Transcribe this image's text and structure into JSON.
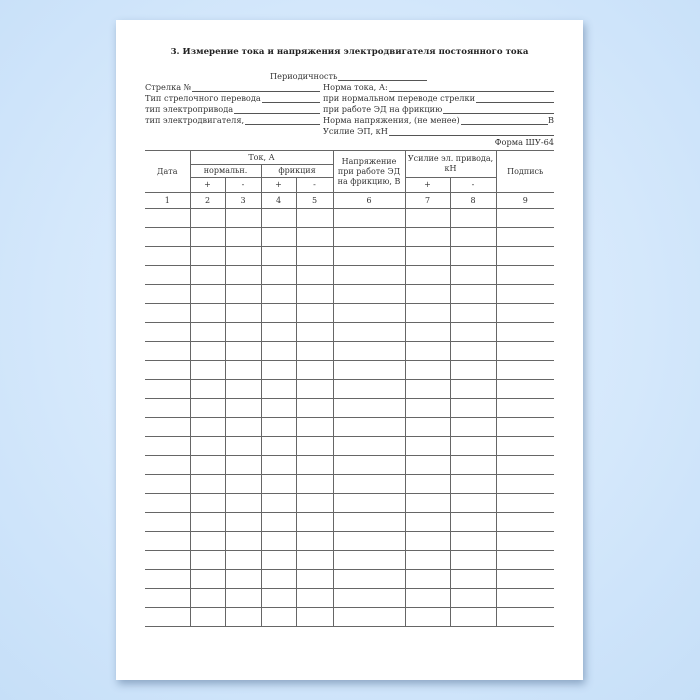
{
  "title": "3. Измерение тока и напряжения электродвигателя постоянного тока",
  "periodicity": "Периодичность",
  "fields_left": [
    "Стрелка №",
    "Тип стрелочного перевода",
    "тип электропривода",
    "тип электродвигателя,"
  ],
  "fields_right": [
    "Норма тока, А:",
    "при нормальном переводе стрелки",
    "при работе ЭД на фрикцию",
    "Норма напряжения, (не менее)",
    "Усилие ЭП, кН"
  ],
  "unit_v": "В",
  "form_id": "Форма ШУ-64",
  "table": {
    "date": "Дата",
    "current": "Ток, А",
    "normal": "нормальн.",
    "friction": "фрикция",
    "voltage": "Напряжение при работе ЭД на фрикцию, В",
    "force": "Усилие эл. привода, кН",
    "signature": "Подпись",
    "plus": "+",
    "minus": "-",
    "numbers": [
      "1",
      "2",
      "3",
      "4",
      "5",
      "6",
      "7",
      "8",
      "9"
    ],
    "empty_rows": 22
  }
}
